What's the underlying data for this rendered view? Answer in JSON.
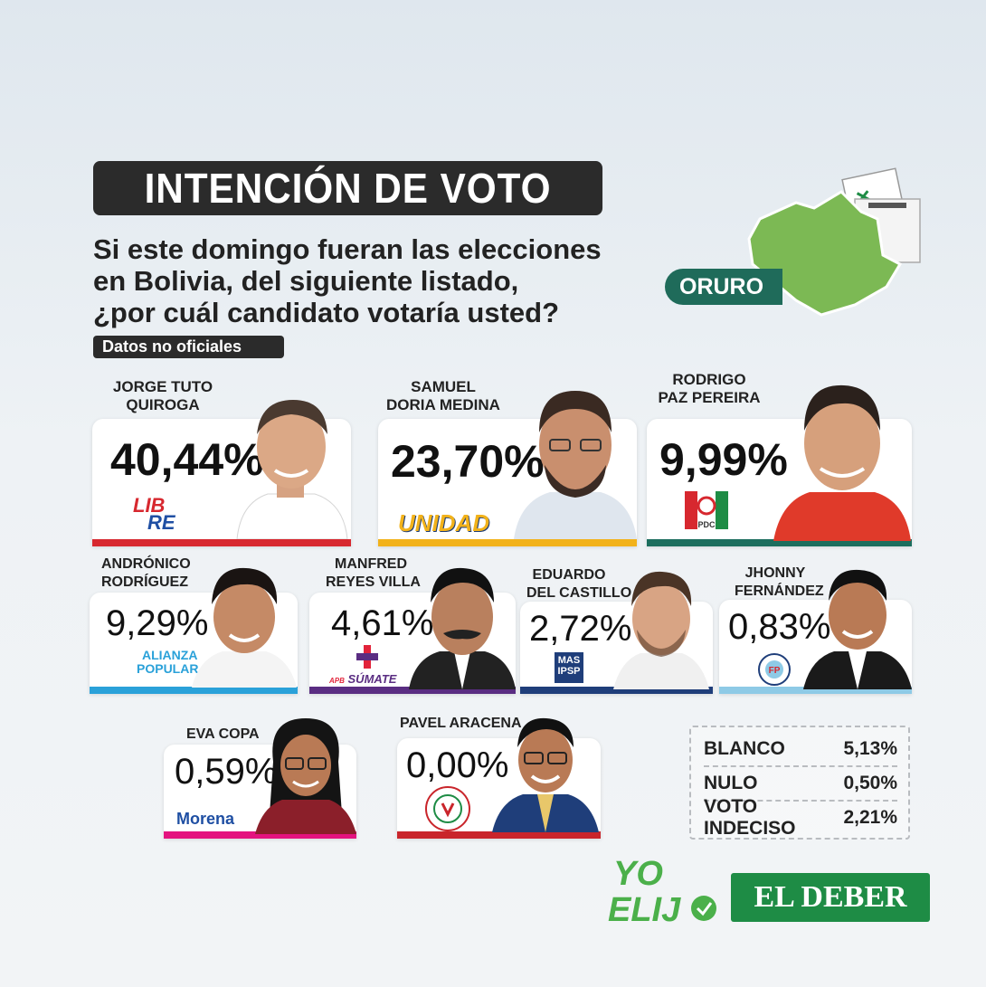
{
  "header": {
    "title": "INTENCIÓN DE VOTO",
    "question_lines": [
      "Si este domingo fueran las elecciones",
      "en Bolivia, del siguiente listado,",
      "¿por cuál candidato votaría usted?"
    ],
    "tag": "Datos no oficiales",
    "region": "ORURO"
  },
  "chart_data": {
    "type": "table",
    "title": "INTENCIÓN DE VOTO",
    "candidates": [
      {
        "name_lines": [
          "JORGE TUTO",
          "QUIROGA"
        ],
        "value_label": "40,44%",
        "value": 40.44,
        "party": "LIBRE",
        "party_lines": [
          "LIB",
          "RE"
        ],
        "color": "#d7282f"
      },
      {
        "name_lines": [
          "SAMUEL",
          "DORIA MEDINA"
        ],
        "value_label": "23,70%",
        "value": 23.7,
        "party": "UNIDAD",
        "color": "#f2b21a"
      },
      {
        "name_lines": [
          "RODRIGO",
          "PAZ PEREIRA"
        ],
        "value_label": "9,99%",
        "value": 9.99,
        "party": "PDC",
        "color": "#1c6e5e"
      },
      {
        "name_lines": [
          "ANDRÓNICO",
          "RODRÍGUEZ"
        ],
        "value_label": "9,29%",
        "value": 9.29,
        "party": "ALIANZA POPULAR",
        "party_lines": [
          "ALIANZA",
          "POPULAR"
        ],
        "color": "#2aa1d9"
      },
      {
        "name_lines": [
          "MANFRED",
          "REYES VILLA"
        ],
        "value_label": "4,61%",
        "value": 4.61,
        "party": "APB SÚMATE",
        "party_lines": [
          "APB",
          "SÚMATE"
        ],
        "color": "#5a2d82"
      },
      {
        "name_lines": [
          "EDUARDO",
          "DEL CASTILLO"
        ],
        "value_label": "2,72%",
        "value": 2.72,
        "party": "MAS IPSP",
        "party_lines": [
          "MAS",
          "IPSP"
        ],
        "color": "#1f3e7a"
      },
      {
        "name_lines": [
          "JHONNY",
          "FERNÁNDEZ"
        ],
        "value_label": "0,83%",
        "value": 0.83,
        "party": "FP",
        "color": "#8ecae6"
      },
      {
        "name_lines": [
          "EVA COPA"
        ],
        "value_label": "0,59%",
        "value": 0.59,
        "party": "Morena",
        "color": "#e4137f"
      },
      {
        "name_lines": [
          "PAVEL ARACENA"
        ],
        "value_label": "0,00%",
        "value": 0.0,
        "party": "LIBERTAD Y PROGRESO",
        "color": "#c9252b"
      }
    ],
    "other": [
      {
        "label": "BLANCO",
        "value_label": "5,13%",
        "value": 5.13
      },
      {
        "label": "NULO",
        "value_label": "0,50%",
        "value": 0.5
      },
      {
        "label": "VOTO INDECISO",
        "value_label": "2,21%",
        "value": 2.21
      }
    ]
  },
  "branding": {
    "yo_elijo": [
      "YO",
      "ELIJ"
    ],
    "el_deber": "EL DEBER"
  }
}
